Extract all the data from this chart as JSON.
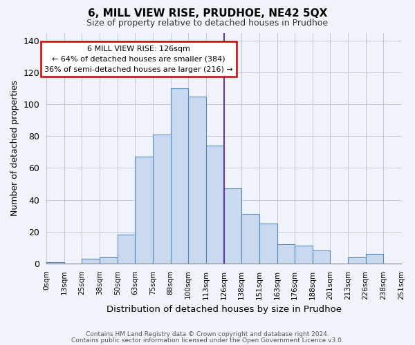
{
  "title": "6, MILL VIEW RISE, PRUDHOE, NE42 5QX",
  "subtitle": "Size of property relative to detached houses in Prudhoe",
  "xlabel": "Distribution of detached houses by size in Prudhoe",
  "ylabel": "Number of detached properties",
  "footer_line1": "Contains HM Land Registry data © Crown copyright and database right 2024.",
  "footer_line2": "Contains public sector information licensed under the Open Government Licence v3.0.",
  "bar_labels": [
    "0sqm",
    "13sqm",
    "25sqm",
    "38sqm",
    "50sqm",
    "63sqm",
    "75sqm",
    "88sqm",
    "100sqm",
    "113sqm",
    "126sqm",
    "138sqm",
    "151sqm",
    "163sqm",
    "176sqm",
    "188sqm",
    "201sqm",
    "213sqm",
    "226sqm",
    "238sqm",
    "251sqm"
  ],
  "bar_values": [
    1,
    0,
    3,
    4,
    18,
    67,
    81,
    110,
    105,
    74,
    47,
    31,
    25,
    12,
    11,
    8,
    0,
    4,
    6,
    0
  ],
  "bar_color": "#c9daf0",
  "bar_edge_color": "#5588bb",
  "highlight_label": "126sqm",
  "highlight_line_color": "#6633aa",
  "ylim": [
    0,
    145
  ],
  "annotation_title": "6 MILL VIEW RISE: 126sqm",
  "annotation_line1": "← 64% of detached houses are smaller (384)",
  "annotation_line2": "36% of semi-detached houses are larger (216) →",
  "annotation_box_color": "#ffffff",
  "annotation_box_edge_color": "#cc0000",
  "background_color": "#f0f4fa"
}
